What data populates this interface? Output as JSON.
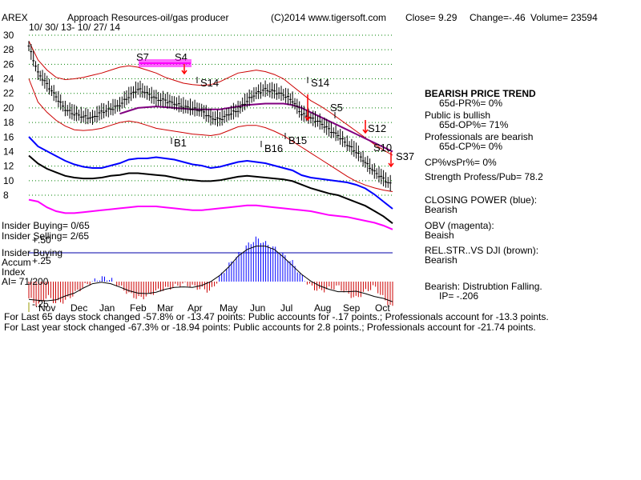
{
  "header": {
    "ticker": "AREX",
    "company": "Approach Resources-oil/gas producer",
    "source": "(C)2014 www.tigersoft.com",
    "close": "Close=  9.29",
    "change": "Change=-.46",
    "volume": "Volume= 23594",
    "date_range": "10/ 30/ 13- 10/ 27/ 14"
  },
  "colors": {
    "grid": "#008000",
    "candles": "#000000",
    "bands": "#cc0000",
    "ma": "#800080",
    "closing_power": "#0000ff",
    "obv": "#ff00ff",
    "relstr": "#000000",
    "accum_pos": "#0000ff",
    "accum_neg": "#cc0000",
    "signal_magenta": "#ff00ff",
    "signal_red": "#ff0000"
  },
  "chart_data": {
    "type": "candlestick",
    "price_axis": {
      "min": 8,
      "max": 30,
      "ticks": [
        "30",
        "28",
        "26",
        "24",
        "22",
        "20",
        "18",
        "16",
        "14",
        "12",
        "10",
        "8"
      ]
    },
    "months": [
      "Nov",
      "Dec",
      "Jan",
      "Feb",
      "Mar",
      "Apr",
      "May",
      "Jun",
      "Jul",
      "Aug",
      "Sep",
      "Oct"
    ],
    "price_close": [
      28.5,
      24.8,
      23.2,
      21.5,
      19.8,
      19.2,
      18.8,
      18.6,
      19.4,
      19.8,
      20.4,
      21.6,
      22.6,
      22.0,
      21.2,
      21.0,
      20.6,
      20.2,
      19.9,
      19.6,
      18.6,
      18.4,
      19.1,
      19.7,
      21.0,
      22.0,
      22.5,
      22.2,
      21.8,
      21.0,
      19.2,
      18.6,
      18.0,
      17.0,
      16.2,
      15.0,
      14.0,
      12.5,
      11.2,
      10.2,
      9.29
    ],
    "upper_band": [
      29.2,
      26.6,
      25.2,
      24.2,
      23.9,
      24.0,
      24.2,
      24.5,
      24.8,
      25.2,
      25.6,
      25.8,
      25.6,
      25.2,
      24.8,
      24.2,
      23.8,
      23.4,
      23.2,
      23.1,
      23.2,
      23.6,
      24.2,
      24.8,
      25.0,
      25.2,
      25.0,
      24.6,
      24.0,
      23.0,
      22.0,
      21.0,
      20.3,
      19.5,
      18.6,
      17.7,
      16.8,
      15.9,
      15.0,
      14.2,
      13.5
    ],
    "lower_band": [
      24.0,
      20.8,
      19.4,
      18.3,
      17.5,
      17.0,
      16.9,
      17.0,
      17.2,
      17.6,
      18.0,
      18.2,
      18.0,
      17.6,
      17.2,
      17.0,
      16.8,
      16.6,
      16.4,
      16.3,
      16.2,
      16.4,
      16.9,
      17.4,
      17.6,
      17.6,
      17.3,
      16.8,
      16.2,
      15.4,
      14.6,
      13.8,
      13.0,
      12.2,
      11.4,
      10.6,
      9.9,
      9.4,
      9.0,
      8.7,
      8.5
    ],
    "ma": [
      null,
      null,
      null,
      null,
      null,
      null,
      null,
      null,
      null,
      null,
      19.2,
      19.6,
      20.0,
      20.1,
      20.2,
      20.1,
      20.0,
      19.9,
      19.8,
      19.8,
      19.8,
      19.8,
      20.0,
      20.2,
      20.4,
      20.5,
      20.6,
      20.6,
      20.6,
      20.4,
      20.0,
      19.4,
      18.8,
      18.2,
      17.6,
      17.0,
      16.4,
      15.8,
      15.2,
      14.6,
      14.0
    ],
    "closing_power": [
      0.38,
      0.3,
      0.26,
      0.22,
      0.18,
      0.15,
      0.13,
      0.12,
      0.12,
      0.14,
      0.16,
      0.19,
      0.2,
      0.2,
      0.21,
      0.2,
      0.19,
      0.17,
      0.15,
      0.14,
      0.12,
      0.13,
      0.15,
      0.17,
      0.18,
      0.17,
      0.16,
      0.14,
      0.12,
      0.1,
      0.06,
      0.04,
      0.03,
      0.02,
      0.01,
      0.0,
      -0.02,
      -0.05,
      -0.1,
      -0.16,
      -0.22
    ],
    "obv": [
      0.02,
      0.0,
      -0.06,
      -0.1,
      -0.12,
      -0.12,
      -0.11,
      -0.1,
      -0.09,
      -0.08,
      -0.07,
      -0.06,
      -0.05,
      -0.05,
      -0.05,
      -0.06,
      -0.07,
      -0.08,
      -0.09,
      -0.09,
      -0.08,
      -0.07,
      -0.06,
      -0.05,
      -0.04,
      -0.04,
      -0.05,
      -0.06,
      -0.07,
      -0.08,
      -0.09,
      -0.1,
      -0.12,
      -0.14,
      -0.15,
      -0.16,
      -0.18,
      -0.2,
      -0.22,
      -0.25,
      -0.29
    ],
    "relstr": [
      0.45,
      0.36,
      0.3,
      0.26,
      0.22,
      0.2,
      0.19,
      0.19,
      0.2,
      0.22,
      0.23,
      0.25,
      0.25,
      0.24,
      0.23,
      0.22,
      0.2,
      0.18,
      0.17,
      0.16,
      0.16,
      0.17,
      0.19,
      0.21,
      0.22,
      0.21,
      0.2,
      0.19,
      0.18,
      0.16,
      0.12,
      0.08,
      0.05,
      0.02,
      0.0,
      -0.04,
      -0.08,
      -0.12,
      -0.18,
      -0.24,
      -0.32
    ],
    "accum": [
      -0.35,
      -0.5,
      -0.3,
      -0.45,
      -0.4,
      -0.25,
      -0.1,
      0.0,
      0.08,
      0.05,
      -0.1,
      -0.25,
      -0.35,
      -0.3,
      -0.2,
      -0.15,
      -0.1,
      -0.05,
      -0.1,
      -0.15,
      -0.2,
      0.1,
      0.35,
      0.55,
      0.75,
      0.9,
      0.8,
      0.7,
      0.55,
      0.4,
      0.1,
      -0.1,
      -0.2,
      -0.15,
      -0.1,
      -0.25,
      -0.35,
      -0.2,
      -0.1,
      -0.35,
      -0.55
    ],
    "accum_axis": {
      "ticks": [
        "+.50",
        "+.25",
        "-.25"
      ]
    }
  },
  "signals": [
    {
      "label": "S7",
      "color": "#000000"
    },
    {
      "label": "S4",
      "color": "#000000"
    },
    {
      "label": "S14",
      "color": "#000000"
    },
    {
      "label": "S14",
      "color": "#000000"
    },
    {
      "label": "S5",
      "color": "#000000"
    },
    {
      "label": "S12",
      "color": "#000000"
    },
    {
      "label": "S10",
      "color": "#000000"
    },
    {
      "label": "S37",
      "color": "#000000"
    },
    {
      "label": "B1",
      "color": "#000000"
    },
    {
      "label": "B16",
      "color": "#000000"
    },
    {
      "label": "B15",
      "color": "#000000"
    }
  ],
  "right_panel": [
    {
      "text": "BEARISH PRICE TREND",
      "bold": true
    },
    {
      "text": "65d-PR%= 0%",
      "bold": false,
      "indent": true
    },
    {
      "text": "Public is bullish",
      "bold": false
    },
    {
      "text": "65d-OP%= 71%",
      "bold": false,
      "indent": true
    },
    {
      "text": "Professionals are bearish",
      "bold": false
    },
    {
      "text": "65d-CP%= 0%",
      "bold": false,
      "indent": true
    },
    {
      "text": "CP%vsPr%=  0%",
      "bold": false
    },
    {
      "text": "Strength Profess/Pub= 78.2",
      "bold": false
    },
    {
      "text": "CLOSING POWER (blue):",
      "bold": false
    },
    {
      "text": "Bearish",
      "bold": false
    },
    {
      "text": "OBV (magenta):",
      "bold": false
    },
    {
      "text": "Beaish",
      "bold": false
    },
    {
      "text": "REL.STR..VS DJI (brown):",
      "bold": false
    },
    {
      "text": "Bearish",
      "bold": false
    },
    {
      "text": "Bearish: Distrubtion Falling.",
      "bold": false
    },
    {
      "text": "IP= -.206",
      "bold": false,
      "indent": true
    }
  ],
  "left_labels": {
    "insider_buying_count": "Insider Buying= 0/65",
    "insider_selling_count": "Insider Selling= 2/65",
    "insider_buying": "Insider Buying",
    "accum": "Accum",
    "index": "Index",
    "ai": "AI= 71/200"
  },
  "footer": {
    "line1": "For Last 65 days stock changed -57.8% or -13.47 points:  Public accounts for -.17 points.;  Professionals account for -13.3 points.",
    "line2": "For Last year stock changed -67.3% or -18.94 points:  Public accounts for  2.8 points.;  Professionals account for -21.74 points."
  }
}
